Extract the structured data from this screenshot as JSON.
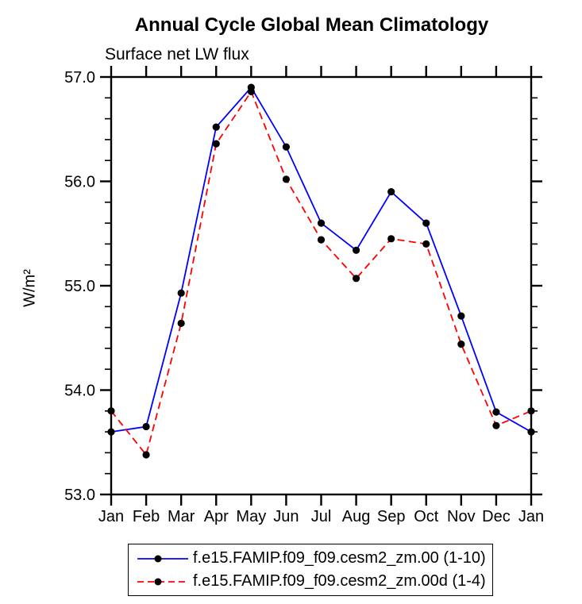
{
  "page": {
    "background": "#ffffff",
    "axis_color": "#000000",
    "text_color": "#000000"
  },
  "chart_data": {
    "type": "line",
    "title": "Annual Cycle Global Mean Climatology",
    "subtitle": "Surface net LW flux",
    "ylabel": "W/m²",
    "xlabel": "",
    "categories": [
      "Jan",
      "Feb",
      "Mar",
      "Apr",
      "May",
      "Jun",
      "Jul",
      "Aug",
      "Sep",
      "Oct",
      "Nov",
      "Dec",
      "Jan"
    ],
    "ylim": [
      53.0,
      57.0
    ],
    "yticks_major": [
      53.0,
      54.0,
      55.0,
      56.0,
      57.0
    ],
    "ytick_labels": [
      "53.0",
      "54.0",
      "55.0",
      "56.0",
      "57.0"
    ],
    "y_minor_tick_step": 0.2,
    "grid": false,
    "legend_position": "bottom",
    "series": [
      {
        "name": "f.e15.FAMIP.f09_f09.cesm2_zm.00 (1-10)",
        "color": "#0000ff",
        "line_style": "solid",
        "marker": "circle",
        "marker_color": "#000000",
        "values": [
          53.6,
          53.65,
          54.93,
          56.52,
          56.9,
          56.33,
          55.6,
          55.34,
          55.9,
          55.6,
          54.71,
          53.79,
          53.6
        ]
      },
      {
        "name": "f.e15.FAMIP.f09_f09.cesm2_zm.00d (1-4)",
        "color": "#ff0000",
        "line_style": "dashed",
        "marker": "circle",
        "marker_color": "#000000",
        "values": [
          53.8,
          53.38,
          54.64,
          56.36,
          56.86,
          56.02,
          55.44,
          55.07,
          55.45,
          55.4,
          54.44,
          53.66,
          53.8
        ]
      }
    ]
  }
}
